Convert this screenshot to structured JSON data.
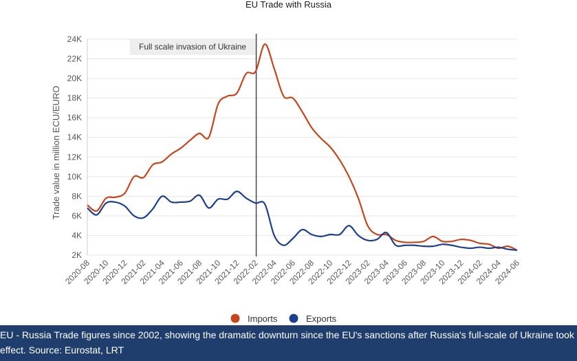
{
  "chart_data": {
    "type": "line",
    "title": "EU Trade with Russia",
    "ylabel": "Trade value in million ECU/EURO",
    "xlabel": "",
    "ylim": [
      2000,
      24000
    ],
    "yticks": [
      2000,
      4000,
      6000,
      8000,
      10000,
      12000,
      14000,
      16000,
      18000,
      20000,
      22000,
      24000
    ],
    "ytick_labels": [
      "2K",
      "4K",
      "6K",
      "8K",
      "10K",
      "12K",
      "14K",
      "16K",
      "18K",
      "20K",
      "22K",
      "24K"
    ],
    "x_start": "2020-08",
    "xtick_labels": [
      "2020-08",
      "2020-10",
      "2020-12",
      "2021-02",
      "2021-04",
      "2021-06",
      "2021-08",
      "2021-10",
      "2021-12",
      "2022-02",
      "2022-04",
      "2022-06",
      "2022-08",
      "2022-10",
      "2022-12",
      "2023-02",
      "2023-04",
      "2023-06",
      "2023-08",
      "2023-10",
      "2023-12",
      "2024-02",
      "2024-04",
      "2024-06"
    ],
    "grid": true,
    "legend_position": "bottom-center",
    "annotation": {
      "label": "Full scale invasion of Ukraine",
      "x": "2022-02"
    },
    "series": [
      {
        "name": "Imports",
        "color": "#c8441b",
        "values": [
          7100,
          6500,
          7800,
          7900,
          8300,
          10000,
          9900,
          11200,
          11500,
          12300,
          12900,
          13700,
          14400,
          14000,
          17400,
          18200,
          18500,
          20500,
          20700,
          23500,
          21000,
          18200,
          18000,
          16600,
          15000,
          13900,
          13000,
          11700,
          10000,
          7800,
          5000,
          4100,
          4100,
          3500,
          3300,
          3300,
          3400,
          3900,
          3400,
          3400,
          3600,
          3500,
          3200,
          3100,
          2700,
          2900,
          2500
        ]
      },
      {
        "name": "Exports",
        "color": "#1b3f8f",
        "values": [
          6800,
          6100,
          7300,
          7400,
          7000,
          6000,
          5800,
          6700,
          8000,
          7400,
          7400,
          7500,
          8100,
          6800,
          7700,
          7700,
          8500,
          7800,
          7300,
          7200,
          4000,
          3000,
          3700,
          4600,
          4100,
          3900,
          4100,
          4100,
          5000,
          4000,
          3500,
          3600,
          4300,
          3000,
          3000,
          3000,
          2900,
          2900,
          3100,
          3000,
          2800,
          2700,
          2800,
          2700,
          2800,
          2600,
          2500
        ]
      }
    ]
  },
  "caption": {
    "line1": "EU - Russia Trade figures since 2002, showing the dramatic downturn since the EU's sanctions after Russia's full-scale of Ukraine took",
    "line2": "effect. Source: Eurostat, LRT"
  }
}
